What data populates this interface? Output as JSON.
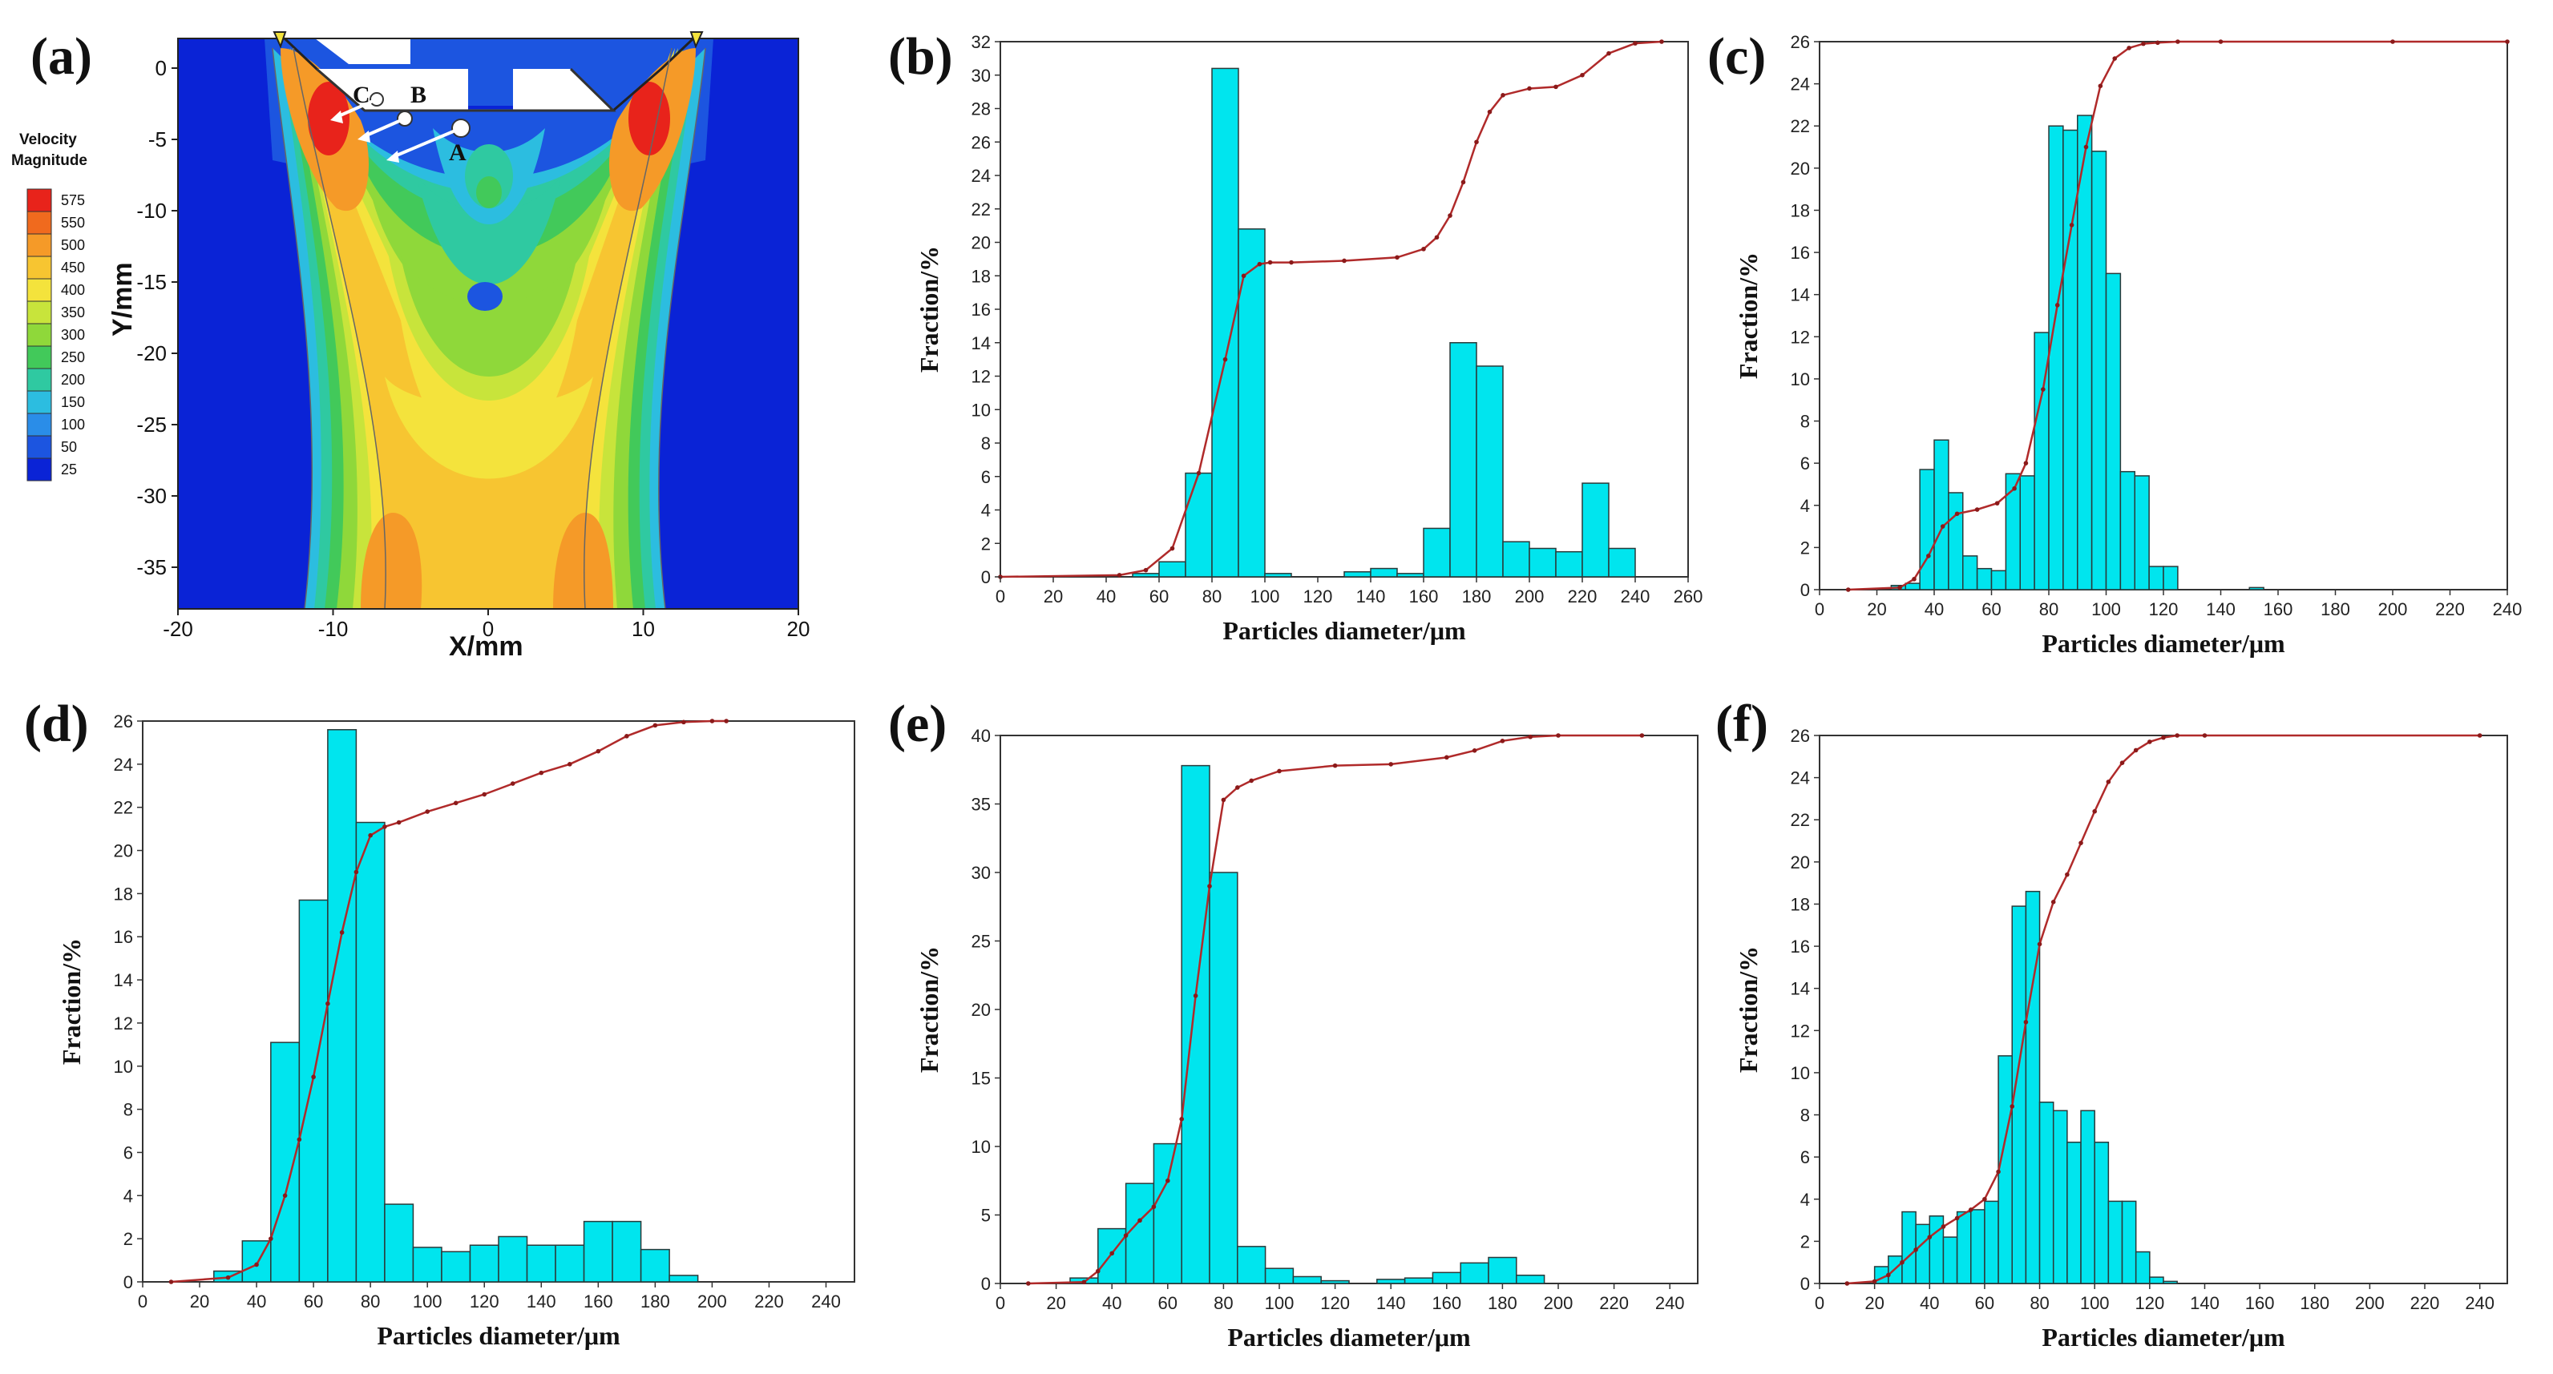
{
  "panels": [
    {
      "label": "(a)"
    },
    {
      "label": "(b)"
    },
    {
      "label": "(c)"
    },
    {
      "label": "(d)"
    },
    {
      "label": "(e)"
    },
    {
      "label": "(f)"
    }
  ],
  "contour": {
    "legend_title_line1": "Velocity",
    "legend_title_line2": "Magnitude",
    "legend_levels": [
      "575",
      "550",
      "500",
      "450",
      "400",
      "350",
      "300",
      "250",
      "200",
      "150",
      "100",
      "50",
      "25"
    ],
    "legend_colors": [
      "#e8231b",
      "#f06a1e",
      "#f59a28",
      "#f7c531",
      "#f4e33c",
      "#c8e43b",
      "#8fd83a",
      "#42c95a",
      "#2fc9a1",
      "#2cbde0",
      "#2a8de8",
      "#1c55e0",
      "#0a23d6"
    ],
    "xlabel": "X/mm",
    "ylabel": "Y/mm",
    "xticks": [
      "-20",
      "-10",
      "0",
      "10",
      "20"
    ],
    "yticks": [
      "0",
      "-5",
      "-10",
      "-15",
      "-20",
      "-25",
      "-30",
      "-35"
    ],
    "points": [
      "A",
      "B",
      "C"
    ]
  },
  "chart_data": [
    {
      "panel": "(b)",
      "type": "bar",
      "xlabel": "Particles diameter/μm",
      "ylabel": "Fraction/%",
      "xlim": [
        0,
        260
      ],
      "ylim": [
        0,
        32
      ],
      "xstep": 20,
      "ystep": 2,
      "xtick_labels": [
        "0",
        "20",
        "40",
        "60",
        "80",
        "100",
        "120",
        "140",
        "160",
        "180",
        "200",
        "220",
        "240",
        "260"
      ],
      "ytick_labels": [
        "0",
        "2",
        "4",
        "6",
        "8",
        "10",
        "12",
        "14",
        "16",
        "18",
        "20",
        "22",
        "24",
        "26",
        "28",
        "30",
        "32"
      ],
      "bars": [
        {
          "x0": 50,
          "x1": 60,
          "v": 0.2
        },
        {
          "x0": 60,
          "x1": 70,
          "v": 0.9
        },
        {
          "x0": 70,
          "x1": 80,
          "v": 6.2
        },
        {
          "x0": 80,
          "x1": 90,
          "v": 30.4
        },
        {
          "x0": 90,
          "x1": 100,
          "v": 20.8
        },
        {
          "x0": 100,
          "x1": 110,
          "v": 0.2
        },
        {
          "x0": 130,
          "x1": 140,
          "v": 0.3
        },
        {
          "x0": 140,
          "x1": 150,
          "v": 0.5
        },
        {
          "x0": 150,
          "x1": 160,
          "v": 0.2
        },
        {
          "x0": 160,
          "x1": 170,
          "v": 2.9
        },
        {
          "x0": 170,
          "x1": 180,
          "v": 14.0
        },
        {
          "x0": 180,
          "x1": 190,
          "v": 12.6
        },
        {
          "x0": 190,
          "x1": 200,
          "v": 2.1
        },
        {
          "x0": 200,
          "x1": 210,
          "v": 1.7
        },
        {
          "x0": 210,
          "x1": 220,
          "v": 1.5
        },
        {
          "x0": 220,
          "x1": 230,
          "v": 5.6
        },
        {
          "x0": 230,
          "x1": 240,
          "v": 1.7
        }
      ],
      "cumulative": {
        "x": [
          0,
          45,
          55,
          65,
          75,
          85,
          92,
          98,
          102,
          110,
          130,
          150,
          160,
          165,
          170,
          175,
          180,
          185,
          190,
          200,
          210,
          220,
          230,
          240,
          250
        ],
        "y": [
          0,
          0.1,
          0.4,
          1.7,
          6.2,
          13.0,
          18.0,
          18.7,
          18.8,
          18.8,
          18.9,
          19.1,
          19.6,
          20.3,
          21.6,
          23.6,
          26.0,
          27.8,
          28.8,
          29.2,
          29.3,
          30.0,
          31.3,
          31.9,
          32.0
        ]
      }
    },
    {
      "panel": "(c)",
      "type": "bar",
      "xlabel": "Particles diameter/μm",
      "ylabel": "Fraction/%",
      "xlim": [
        0,
        240
      ],
      "ylim": [
        0,
        26
      ],
      "xstep": 20,
      "ystep": 2,
      "xtick_labels": [
        "0",
        "20",
        "40",
        "60",
        "80",
        "100",
        "120",
        "140",
        "160",
        "180",
        "200",
        "220",
        "240"
      ],
      "ytick_labels": [
        "0",
        "2",
        "4",
        "6",
        "8",
        "10",
        "12",
        "14",
        "16",
        "18",
        "20",
        "22",
        "24",
        "26"
      ],
      "bars": [
        {
          "x0": 25,
          "x1": 30,
          "v": 0.2
        },
        {
          "x0": 30,
          "x1": 35,
          "v": 0.3
        },
        {
          "x0": 35,
          "x1": 40,
          "v": 5.7
        },
        {
          "x0": 40,
          "x1": 45,
          "v": 7.1
        },
        {
          "x0": 45,
          "x1": 50,
          "v": 4.6
        },
        {
          "x0": 50,
          "x1": 55,
          "v": 1.6
        },
        {
          "x0": 55,
          "x1": 60,
          "v": 1.0
        },
        {
          "x0": 60,
          "x1": 65,
          "v": 0.9
        },
        {
          "x0": 65,
          "x1": 70,
          "v": 5.5
        },
        {
          "x0": 70,
          "x1": 75,
          "v": 5.4
        },
        {
          "x0": 75,
          "x1": 80,
          "v": 12.2
        },
        {
          "x0": 80,
          "x1": 85,
          "v": 22.0
        },
        {
          "x0": 85,
          "x1": 90,
          "v": 21.8
        },
        {
          "x0": 90,
          "x1": 95,
          "v": 22.5
        },
        {
          "x0": 95,
          "x1": 100,
          "v": 20.8
        },
        {
          "x0": 100,
          "x1": 105,
          "v": 15.0
        },
        {
          "x0": 105,
          "x1": 110,
          "v": 5.6
        },
        {
          "x0": 110,
          "x1": 115,
          "v": 5.4
        },
        {
          "x0": 115,
          "x1": 120,
          "v": 1.1
        },
        {
          "x0": 120,
          "x1": 125,
          "v": 1.1
        },
        {
          "x0": 150,
          "x1": 155,
          "v": 0.1
        }
      ],
      "cumulative": {
        "x": [
          10,
          28,
          33,
          38,
          43,
          48,
          55,
          62,
          68,
          72,
          78,
          83,
          88,
          93,
          98,
          103,
          108,
          113,
          118,
          125,
          140,
          200,
          240
        ],
        "y": [
          0,
          0.1,
          0.5,
          1.6,
          3.0,
          3.6,
          3.8,
          4.1,
          4.8,
          6.0,
          9.5,
          13.5,
          17.3,
          21.0,
          23.9,
          25.2,
          25.7,
          25.9,
          25.95,
          26.0,
          26.0,
          26.0,
          26.0
        ]
      }
    },
    {
      "panel": "(d)",
      "type": "bar",
      "xlabel": "Particles diameter/μm",
      "ylabel": "Fraction/%",
      "xlim": [
        0,
        250
      ],
      "ylim": [
        0,
        26
      ],
      "xstep": 20,
      "ystep": 2,
      "xtick_labels": [
        "0",
        "20",
        "40",
        "60",
        "80",
        "100",
        "120",
        "140",
        "160",
        "180",
        "200",
        "220",
        "240"
      ],
      "ytick_labels": [
        "0",
        "2",
        "4",
        "6",
        "8",
        "10",
        "12",
        "14",
        "16",
        "18",
        "20",
        "22",
        "24",
        "26"
      ],
      "bars": [
        {
          "x0": 25,
          "x1": 35,
          "v": 0.5
        },
        {
          "x0": 35,
          "x1": 45,
          "v": 1.9
        },
        {
          "x0": 45,
          "x1": 55,
          "v": 11.1
        },
        {
          "x0": 55,
          "x1": 65,
          "v": 17.7
        },
        {
          "x0": 65,
          "x1": 75,
          "v": 25.6
        },
        {
          "x0": 75,
          "x1": 85,
          "v": 21.3
        },
        {
          "x0": 85,
          "x1": 95,
          "v": 3.6
        },
        {
          "x0": 95,
          "x1": 105,
          "v": 1.6
        },
        {
          "x0": 105,
          "x1": 115,
          "v": 1.4
        },
        {
          "x0": 115,
          "x1": 125,
          "v": 1.7
        },
        {
          "x0": 125,
          "x1": 135,
          "v": 2.1
        },
        {
          "x0": 135,
          "x1": 145,
          "v": 1.7
        },
        {
          "x0": 145,
          "x1": 155,
          "v": 1.7
        },
        {
          "x0": 155,
          "x1": 165,
          "v": 2.8
        },
        {
          "x0": 165,
          "x1": 175,
          "v": 2.8
        },
        {
          "x0": 175,
          "x1": 185,
          "v": 1.5
        },
        {
          "x0": 185,
          "x1": 195,
          "v": 0.3
        }
      ],
      "cumulative": {
        "x": [
          10,
          30,
          40,
          45,
          50,
          55,
          60,
          65,
          70,
          75,
          80,
          85,
          90,
          100,
          110,
          120,
          130,
          140,
          150,
          160,
          170,
          180,
          190,
          200,
          205
        ],
        "y": [
          0,
          0.2,
          0.8,
          2.0,
          4.0,
          6.6,
          9.5,
          12.9,
          16.2,
          19.0,
          20.7,
          21.1,
          21.3,
          21.8,
          22.2,
          22.6,
          23.1,
          23.6,
          24.0,
          24.6,
          25.3,
          25.8,
          25.95,
          26.0,
          26.0
        ]
      }
    },
    {
      "panel": "(e)",
      "type": "bar",
      "xlabel": "Particles diameter/μm",
      "ylabel": "Fraction/%",
      "xlim": [
        0,
        250
      ],
      "ylim": [
        0,
        40
      ],
      "xstep": 20,
      "ystep": 5,
      "xtick_labels": [
        "0",
        "20",
        "40",
        "60",
        "80",
        "100",
        "120",
        "140",
        "160",
        "180",
        "200",
        "220",
        "240"
      ],
      "ytick_labels": [
        "0",
        "5",
        "10",
        "15",
        "20",
        "25",
        "30",
        "35",
        "40"
      ],
      "bars": [
        {
          "x0": 25,
          "x1": 35,
          "v": 0.4
        },
        {
          "x0": 35,
          "x1": 45,
          "v": 4.0
        },
        {
          "x0": 45,
          "x1": 55,
          "v": 7.3
        },
        {
          "x0": 55,
          "x1": 65,
          "v": 10.2
        },
        {
          "x0": 65,
          "x1": 75,
          "v": 37.8
        },
        {
          "x0": 75,
          "x1": 85,
          "v": 30.0
        },
        {
          "x0": 85,
          "x1": 95,
          "v": 2.7
        },
        {
          "x0": 95,
          "x1": 105,
          "v": 1.1
        },
        {
          "x0": 105,
          "x1": 115,
          "v": 0.5
        },
        {
          "x0": 115,
          "x1": 125,
          "v": 0.2
        },
        {
          "x0": 135,
          "x1": 145,
          "v": 0.3
        },
        {
          "x0": 145,
          "x1": 155,
          "v": 0.4
        },
        {
          "x0": 155,
          "x1": 165,
          "v": 0.8
        },
        {
          "x0": 165,
          "x1": 175,
          "v": 1.5
        },
        {
          "x0": 175,
          "x1": 185,
          "v": 1.9
        },
        {
          "x0": 185,
          "x1": 195,
          "v": 0.6
        }
      ],
      "cumulative": {
        "x": [
          10,
          30,
          35,
          40,
          45,
          50,
          55,
          60,
          65,
          70,
          75,
          80,
          85,
          90,
          100,
          120,
          140,
          160,
          170,
          180,
          190,
          200,
          230
        ],
        "y": [
          0,
          0.1,
          0.9,
          2.2,
          3.5,
          4.6,
          5.6,
          7.5,
          12.0,
          21.0,
          29.0,
          35.3,
          36.2,
          36.7,
          37.4,
          37.8,
          37.9,
          38.4,
          38.9,
          39.6,
          39.9,
          40.0,
          40.0
        ]
      }
    },
    {
      "panel": "(f)",
      "type": "bar",
      "xlabel": "Particles diameter/μm",
      "ylabel": "Fraction/%",
      "xlim": [
        0,
        250
      ],
      "ylim": [
        0,
        26
      ],
      "xstep": 20,
      "ystep": 2,
      "xtick_labels": [
        "0",
        "20",
        "40",
        "60",
        "80",
        "100",
        "120",
        "140",
        "160",
        "180",
        "200",
        "220",
        "240"
      ],
      "ytick_labels": [
        "0",
        "2",
        "4",
        "6",
        "8",
        "10",
        "12",
        "14",
        "16",
        "18",
        "20",
        "22",
        "24",
        "26"
      ],
      "bars": [
        {
          "x0": 20,
          "x1": 25,
          "v": 0.8
        },
        {
          "x0": 25,
          "x1": 30,
          "v": 1.3
        },
        {
          "x0": 30,
          "x1": 35,
          "v": 3.4
        },
        {
          "x0": 35,
          "x1": 40,
          "v": 2.8
        },
        {
          "x0": 40,
          "x1": 45,
          "v": 3.2
        },
        {
          "x0": 45,
          "x1": 50,
          "v": 2.2
        },
        {
          "x0": 50,
          "x1": 55,
          "v": 3.4
        },
        {
          "x0": 55,
          "x1": 60,
          "v": 3.5
        },
        {
          "x0": 60,
          "x1": 65,
          "v": 3.9
        },
        {
          "x0": 65,
          "x1": 70,
          "v": 10.8
        },
        {
          "x0": 70,
          "x1": 75,
          "v": 17.9
        },
        {
          "x0": 75,
          "x1": 80,
          "v": 18.6
        },
        {
          "x0": 80,
          "x1": 85,
          "v": 8.6
        },
        {
          "x0": 85,
          "x1": 90,
          "v": 8.2
        },
        {
          "x0": 90,
          "x1": 95,
          "v": 6.7
        },
        {
          "x0": 95,
          "x1": 100,
          "v": 8.2
        },
        {
          "x0": 100,
          "x1": 105,
          "v": 6.7
        },
        {
          "x0": 105,
          "x1": 110,
          "v": 3.9
        },
        {
          "x0": 110,
          "x1": 115,
          "v": 3.9
        },
        {
          "x0": 115,
          "x1": 120,
          "v": 1.5
        },
        {
          "x0": 120,
          "x1": 125,
          "v": 0.3
        },
        {
          "x0": 125,
          "x1": 130,
          "v": 0.1
        }
      ],
      "cumulative": {
        "x": [
          10,
          20,
          25,
          30,
          35,
          40,
          45,
          50,
          55,
          60,
          65,
          70,
          75,
          80,
          85,
          90,
          95,
          100,
          105,
          110,
          115,
          120,
          125,
          130,
          140,
          240
        ],
        "y": [
          0,
          0.1,
          0.4,
          1.0,
          1.6,
          2.2,
          2.7,
          3.1,
          3.5,
          4.0,
          5.3,
          8.4,
          12.4,
          16.1,
          18.1,
          19.4,
          20.9,
          22.4,
          23.8,
          24.7,
          25.3,
          25.7,
          25.9,
          26.0,
          26.0,
          26.0
        ]
      }
    }
  ]
}
